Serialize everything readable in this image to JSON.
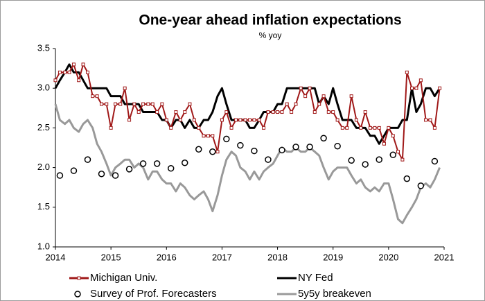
{
  "chart_data": {
    "type": "line",
    "title": "One-year ahead inflation expectations",
    "subtitle": "% yoy",
    "x": [
      2014.0,
      2014.08,
      2014.17,
      2014.25,
      2014.33,
      2014.42,
      2014.5,
      2014.58,
      2014.67,
      2014.75,
      2014.83,
      2014.92,
      2015.0,
      2015.08,
      2015.17,
      2015.25,
      2015.33,
      2015.42,
      2015.5,
      2015.58,
      2015.67,
      2015.75,
      2015.83,
      2015.92,
      2016.0,
      2016.08,
      2016.17,
      2016.25,
      2016.33,
      2016.42,
      2016.5,
      2016.58,
      2016.67,
      2016.75,
      2016.83,
      2016.92,
      2017.0,
      2017.08,
      2017.17,
      2017.25,
      2017.33,
      2017.42,
      2017.5,
      2017.58,
      2017.67,
      2017.75,
      2017.83,
      2017.92,
      2018.0,
      2018.08,
      2018.17,
      2018.25,
      2018.33,
      2018.42,
      2018.5,
      2018.58,
      2018.67,
      2018.75,
      2018.83,
      2018.92,
      2019.0,
      2019.08,
      2019.17,
      2019.25,
      2019.33,
      2019.42,
      2019.5,
      2019.58,
      2019.67,
      2019.75,
      2019.83,
      2019.92,
      2020.0,
      2020.08,
      2020.17,
      2020.25,
      2020.33,
      2020.42,
      2020.5,
      2020.58,
      2020.67,
      2020.75,
      2020.83,
      2020.92
    ],
    "series": [
      {
        "name": "Michigan Univ.",
        "color": "#a01818",
        "style": "line-markers",
        "values": [
          3.1,
          3.2,
          3.2,
          3.2,
          3.3,
          3.1,
          3.3,
          3.2,
          2.9,
          2.9,
          2.8,
          2.8,
          2.5,
          2.8,
          2.8,
          3.0,
          2.6,
          2.8,
          2.7,
          2.8,
          2.8,
          2.8,
          2.7,
          2.8,
          2.6,
          2.5,
          2.7,
          2.6,
          2.7,
          2.8,
          2.6,
          2.5,
          2.4,
          2.4,
          2.4,
          2.2,
          2.6,
          2.7,
          2.5,
          2.6,
          2.6,
          2.6,
          2.6,
          2.6,
          2.6,
          2.5,
          2.7,
          2.7,
          2.7,
          2.7,
          2.8,
          2.7,
          2.8,
          3.0,
          2.9,
          3.0,
          2.7,
          2.8,
          2.9,
          2.7,
          2.7,
          2.6,
          2.5,
          2.5,
          2.9,
          2.6,
          2.5,
          2.7,
          2.5,
          2.5,
          2.5,
          2.3,
          2.5,
          2.4,
          2.2,
          2.1,
          3.2,
          3.0,
          3.0,
          3.1,
          2.6,
          2.6,
          2.5,
          3.0
        ]
      },
      {
        "name": "NY Fed",
        "color": "#000000",
        "style": "line",
        "values": [
          3.0,
          3.1,
          3.2,
          3.3,
          3.2,
          3.2,
          3.1,
          3.0,
          3.0,
          3.0,
          3.0,
          3.0,
          2.9,
          2.9,
          2.9,
          2.8,
          2.8,
          2.8,
          2.8,
          2.7,
          2.7,
          2.7,
          2.7,
          2.6,
          2.6,
          2.5,
          2.6,
          2.6,
          2.5,
          2.6,
          2.5,
          2.5,
          2.6,
          2.6,
          2.7,
          2.9,
          3.0,
          2.8,
          2.6,
          2.6,
          2.6,
          2.6,
          2.5,
          2.5,
          2.6,
          2.7,
          2.7,
          2.7,
          2.8,
          2.8,
          3.0,
          3.0,
          3.0,
          3.0,
          3.0,
          3.0,
          3.0,
          2.8,
          2.9,
          2.8,
          3.0,
          2.8,
          2.6,
          2.6,
          2.6,
          2.5,
          2.5,
          2.5,
          2.4,
          2.4,
          2.3,
          2.4,
          2.5,
          2.5,
          2.5,
          2.6,
          2.6,
          3.0,
          2.7,
          2.8,
          3.0,
          3.0,
          2.9,
          3.0
        ]
      },
      {
        "name": "Survey of Prof. Forecasters",
        "color": "#000000",
        "style": "markers",
        "x": [
          2014.08,
          2014.33,
          2014.58,
          2014.83,
          2015.08,
          2015.33,
          2015.58,
          2015.83,
          2016.08,
          2016.33,
          2016.58,
          2016.83,
          2017.08,
          2017.33,
          2017.58,
          2017.83,
          2018.08,
          2018.33,
          2018.58,
          2018.83,
          2019.08,
          2019.33,
          2019.58,
          2019.83,
          2020.08,
          2020.33,
          2020.58,
          2020.83
        ],
        "values": [
          1.9,
          1.96,
          2.1,
          1.92,
          1.9,
          1.98,
          2.05,
          2.05,
          1.99,
          2.06,
          2.23,
          2.2,
          2.36,
          2.28,
          2.21,
          2.1,
          2.22,
          2.26,
          2.26,
          2.37,
          2.27,
          2.09,
          2.04,
          2.1,
          2.16,
          1.86,
          1.77,
          2.08
        ]
      },
      {
        "name": "5y5y breakeven",
        "color": "#999999",
        "style": "line",
        "values": [
          2.8,
          2.6,
          2.55,
          2.6,
          2.5,
          2.45,
          2.55,
          2.6,
          2.5,
          2.3,
          2.2,
          2.05,
          1.9,
          2.0,
          2.05,
          2.1,
          2.1,
          2.0,
          2.05,
          2.0,
          1.85,
          1.95,
          1.95,
          1.85,
          1.8,
          1.8,
          1.7,
          1.8,
          1.75,
          1.65,
          1.6,
          1.65,
          1.7,
          1.6,
          1.45,
          1.65,
          1.9,
          2.1,
          2.2,
          2.15,
          2.0,
          1.95,
          1.85,
          1.95,
          1.85,
          1.95,
          2.0,
          2.05,
          2.15,
          2.25,
          2.2,
          2.2,
          2.25,
          2.2,
          2.2,
          2.25,
          2.2,
          2.15,
          2.0,
          1.85,
          1.95,
          2.0,
          2.0,
          2.0,
          1.9,
          1.8,
          1.85,
          1.75,
          1.7,
          1.75,
          1.7,
          1.8,
          1.8,
          1.6,
          1.35,
          1.3,
          1.4,
          1.5,
          1.6,
          1.75,
          1.8,
          1.75,
          1.85,
          2.0
        ]
      }
    ],
    "xlim": [
      2014,
      2021
    ],
    "xticks": [
      2014,
      2015,
      2016,
      2017,
      2018,
      2019,
      2020,
      2021
    ],
    "ylim": [
      1,
      3.5
    ],
    "yticks": [
      {
        "value": 1,
        "label": "1.0"
      },
      {
        "value": 1.5,
        "label": "1.5"
      },
      {
        "value": 2,
        "label": "2.0"
      },
      {
        "value": 2.5,
        "label": "2.5"
      },
      {
        "value": 3,
        "label": "3.0"
      },
      {
        "value": 3.5,
        "label": "3.5"
      }
    ],
    "grid": false
  }
}
